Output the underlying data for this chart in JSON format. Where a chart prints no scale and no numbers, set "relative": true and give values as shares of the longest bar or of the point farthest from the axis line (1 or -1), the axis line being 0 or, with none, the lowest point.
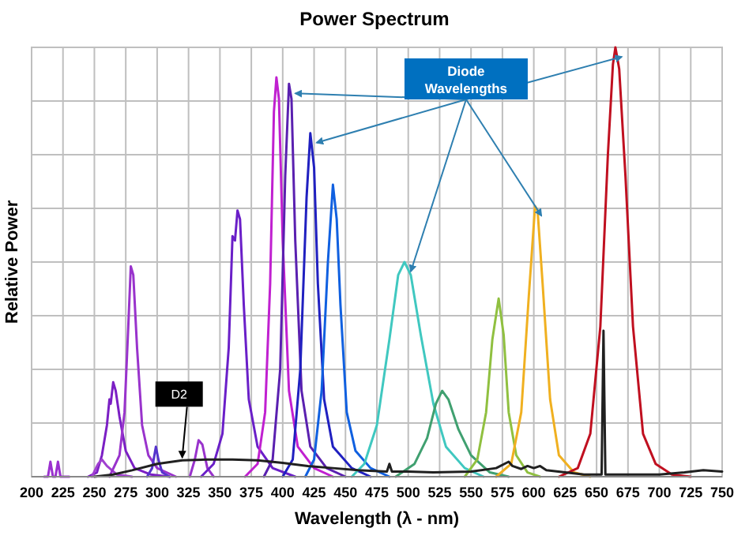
{
  "chart_data": {
    "type": "line",
    "title": "Power Spectrum",
    "xlabel": "Wavelength (λ - nm)",
    "ylabel": "Relative Power",
    "relative": true,
    "xlim": [
      200,
      750
    ],
    "xticks": [
      200,
      225,
      250,
      275,
      300,
      325,
      350,
      375,
      400,
      425,
      450,
      475,
      500,
      525,
      550,
      575,
      600,
      625,
      650,
      675,
      700,
      725,
      750
    ],
    "grid": true,
    "line_style": "solid",
    "annotations": [
      "Diode Wavelengths",
      {
        "text": "D2",
        "x": 320,
        "y": 0.038
      }
    ],
    "series": [
      {
        "color": "#9b30d0",
        "x": [
          210,
          213,
          215,
          217,
          219,
          221,
          223,
          230
        ],
        "values": [
          0,
          0,
          0.035,
          0,
          0,
          0.035,
          0,
          0
        ]
      },
      {
        "color": "#7b1fc4",
        "x": [
          245,
          252,
          256,
          260,
          262,
          263,
          265,
          267,
          270,
          275,
          282,
          295,
          310
        ],
        "values": [
          0,
          0.01,
          0.05,
          0.12,
          0.18,
          0.17,
          0.22,
          0.2,
          0.14,
          0.06,
          0.02,
          0.005,
          0
        ]
      },
      {
        "color": "#a040d0",
        "x": [
          248,
          253,
          256,
          260,
          268,
          280
        ],
        "values": [
          0,
          0.03,
          0.04,
          0.025,
          0.005,
          0
        ]
      },
      {
        "color": "#9933cc",
        "x": [
          262,
          270,
          274,
          277,
          279,
          281,
          284,
          288,
          293,
          300,
          315
        ],
        "values": [
          0,
          0.05,
          0.15,
          0.35,
          0.49,
          0.47,
          0.3,
          0.12,
          0.05,
          0.02,
          0
        ]
      },
      {
        "color": "#5533cc",
        "x": [
          292,
          296,
          299,
          301,
          304,
          310
        ],
        "values": [
          0,
          0.02,
          0.07,
          0.04,
          0.01,
          0
        ]
      },
      {
        "color": "#9933cc",
        "x": [
          326,
          330,
          333,
          336,
          340,
          345
        ],
        "values": [
          0,
          0.04,
          0.085,
          0.075,
          0.02,
          0
        ]
      },
      {
        "color": "#6a1fc8",
        "x": [
          335,
          345,
          352,
          357,
          360,
          362,
          364,
          366,
          369,
          373,
          380,
          392,
          410
        ],
        "values": [
          0,
          0.03,
          0.1,
          0.3,
          0.56,
          0.55,
          0.62,
          0.6,
          0.4,
          0.18,
          0.07,
          0.02,
          0
        ]
      },
      {
        "color": "#c020d0",
        "x": [
          370,
          380,
          386,
          390,
          393,
          395,
          397,
          400,
          405,
          412,
          425,
          440
        ],
        "values": [
          0,
          0.03,
          0.15,
          0.45,
          0.85,
          0.93,
          0.88,
          0.55,
          0.2,
          0.07,
          0.02,
          0
        ]
      },
      {
        "color": "#5a20b0",
        "x": [
          385,
          392,
          398,
          402,
          405,
          407,
          410,
          415,
          422,
          435,
          450
        ],
        "values": [
          0,
          0.04,
          0.25,
          0.7,
          0.915,
          0.88,
          0.55,
          0.2,
          0.07,
          0.02,
          0
        ]
      },
      {
        "color": "#2020c0",
        "x": [
          400,
          408,
          414,
          419,
          422,
          425,
          428,
          433,
          440,
          455,
          470
        ],
        "values": [
          0,
          0.04,
          0.25,
          0.65,
          0.8,
          0.72,
          0.45,
          0.18,
          0.07,
          0.02,
          0
        ]
      },
      {
        "color": "#1060e0",
        "x": [
          418,
          425,
          431,
          436,
          440,
          443,
          446,
          451,
          458,
          470,
          485
        ],
        "values": [
          0,
          0.04,
          0.2,
          0.5,
          0.68,
          0.6,
          0.4,
          0.15,
          0.06,
          0.02,
          0
        ]
      },
      {
        "color": "#40c8c0",
        "x": [
          455,
          465,
          475,
          485,
          492,
          497,
          502,
          510,
          520,
          530,
          545,
          560
        ],
        "values": [
          0,
          0.03,
          0.12,
          0.32,
          0.47,
          0.5,
          0.47,
          0.33,
          0.17,
          0.07,
          0.02,
          0
        ]
      },
      {
        "color": "#40a070",
        "x": [
          490,
          505,
          515,
          522,
          527,
          532,
          540,
          550,
          565,
          580
        ],
        "values": [
          0,
          0.03,
          0.09,
          0.17,
          0.2,
          0.18,
          0.11,
          0.05,
          0.01,
          0
        ]
      },
      {
        "color": "#90c040",
        "x": [
          545,
          555,
          562,
          567,
          572,
          576,
          580,
          586,
          595,
          605
        ],
        "values": [
          0,
          0.04,
          0.15,
          0.32,
          0.415,
          0.33,
          0.15,
          0.05,
          0.01,
          0
        ]
      },
      {
        "color": "#f0b020",
        "x": [
          570,
          582,
          590,
          596,
          601,
          603,
          607,
          613,
          620,
          632,
          645
        ],
        "values": [
          0,
          0.03,
          0.15,
          0.42,
          0.63,
          0.62,
          0.45,
          0.18,
          0.05,
          0.01,
          0
        ]
      },
      {
        "color": "#c01020",
        "x": [
          620,
          635,
          645,
          653,
          659,
          663,
          665,
          668,
          673,
          679,
          687,
          697,
          710,
          725
        ],
        "values": [
          0,
          0.02,
          0.1,
          0.35,
          0.75,
          0.96,
          1,
          0.95,
          0.7,
          0.35,
          0.1,
          0.03,
          0.005,
          0
        ]
      },
      {
        "color": "#202020",
        "x": [
          250,
          265,
          280,
          300,
          320,
          340,
          360,
          380,
          400,
          420,
          440,
          460,
          483,
          485,
          487,
          500,
          520,
          550,
          570,
          580,
          583,
          590,
          595,
          600,
          605,
          610,
          625,
          640,
          654,
          655.5,
          657,
          680,
          700,
          720,
          735,
          750
        ],
        "values": [
          0,
          0.005,
          0.015,
          0.03,
          0.038,
          0.04,
          0.04,
          0.038,
          0.032,
          0.025,
          0.02,
          0.015,
          0.012,
          0.03,
          0.012,
          0.012,
          0.01,
          0.012,
          0.02,
          0.035,
          0.025,
          0.018,
          0.025,
          0.02,
          0.025,
          0.015,
          0.01,
          0.005,
          0.005,
          0.34,
          0.005,
          0.005,
          0.005,
          0.01,
          0.015,
          0.012
        ]
      }
    ]
  }
}
